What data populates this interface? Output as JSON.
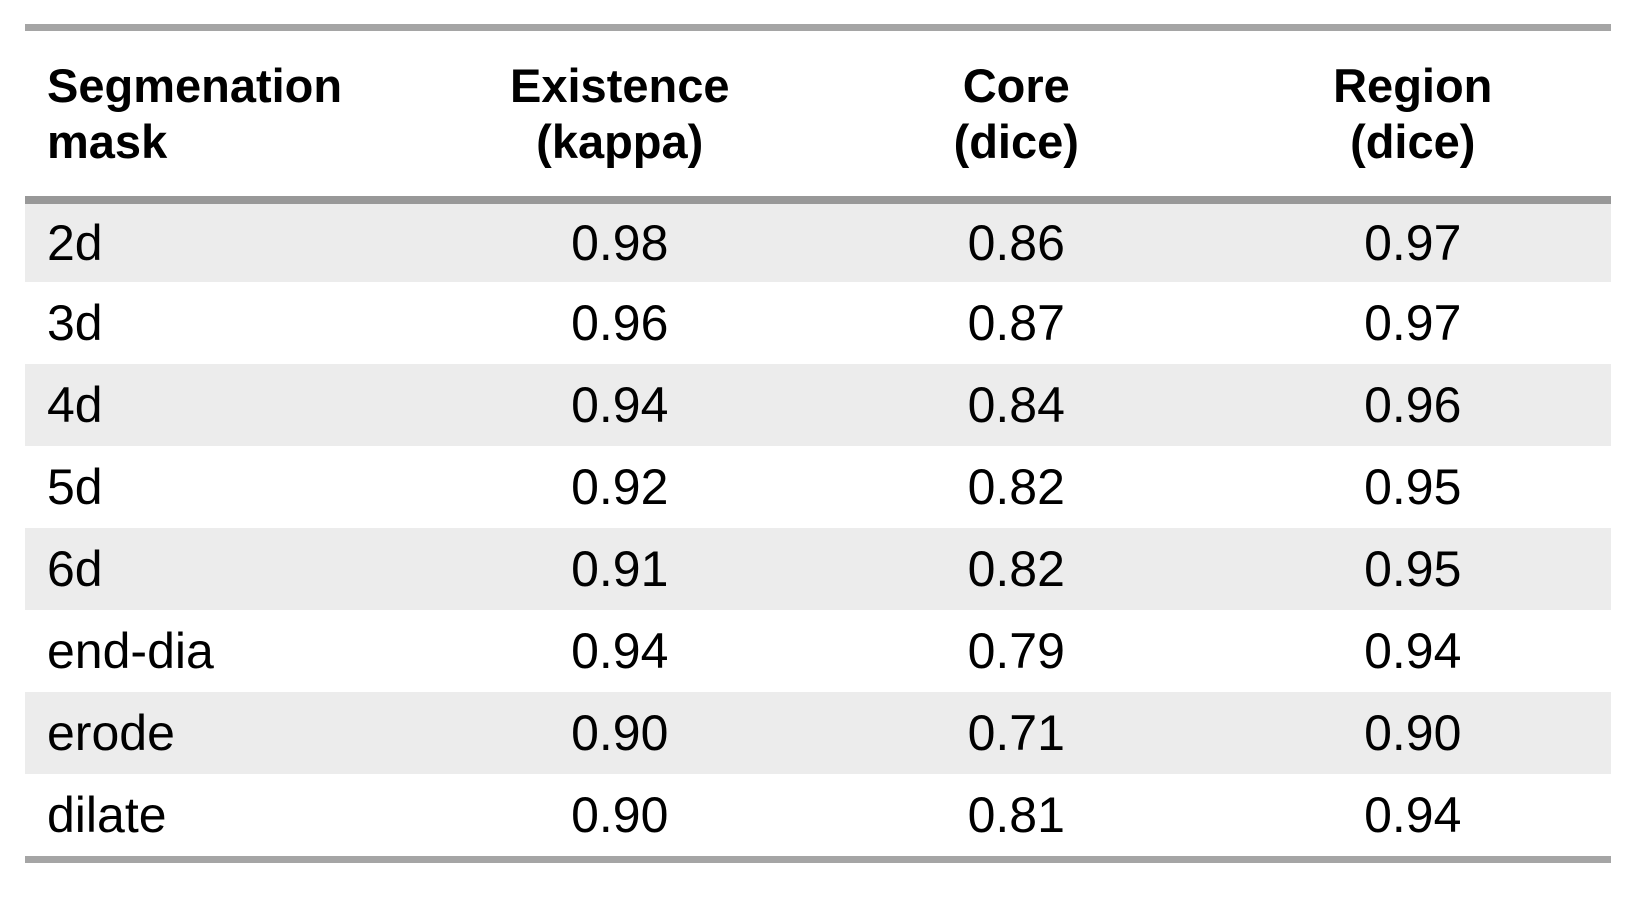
{
  "colors": {
    "stripe": "#ececec",
    "rule_outer": "#a5a5a5",
    "rule_header": "#989898",
    "text": "#000000",
    "background": "#ffffff"
  },
  "chart_data": {
    "type": "table",
    "title": "",
    "columns": [
      "Segmenation\nmask",
      "Existence\n(kappa)",
      "Core\n(dice)",
      "Region\n(dice)"
    ],
    "rows": [
      [
        "2d",
        "0.98",
        "0.86",
        "0.97"
      ],
      [
        "3d",
        "0.96",
        "0.87",
        "0.97"
      ],
      [
        "4d",
        "0.94",
        "0.84",
        "0.96"
      ],
      [
        "5d",
        "0.92",
        "0.82",
        "0.95"
      ],
      [
        "6d",
        "0.91",
        "0.82",
        "0.95"
      ],
      [
        "end-dia",
        "0.94",
        "0.79",
        "0.94"
      ],
      [
        "erode",
        "0.90",
        "0.71",
        "0.90"
      ],
      [
        "dilate",
        "0.90",
        "0.81",
        "0.94"
      ]
    ]
  }
}
